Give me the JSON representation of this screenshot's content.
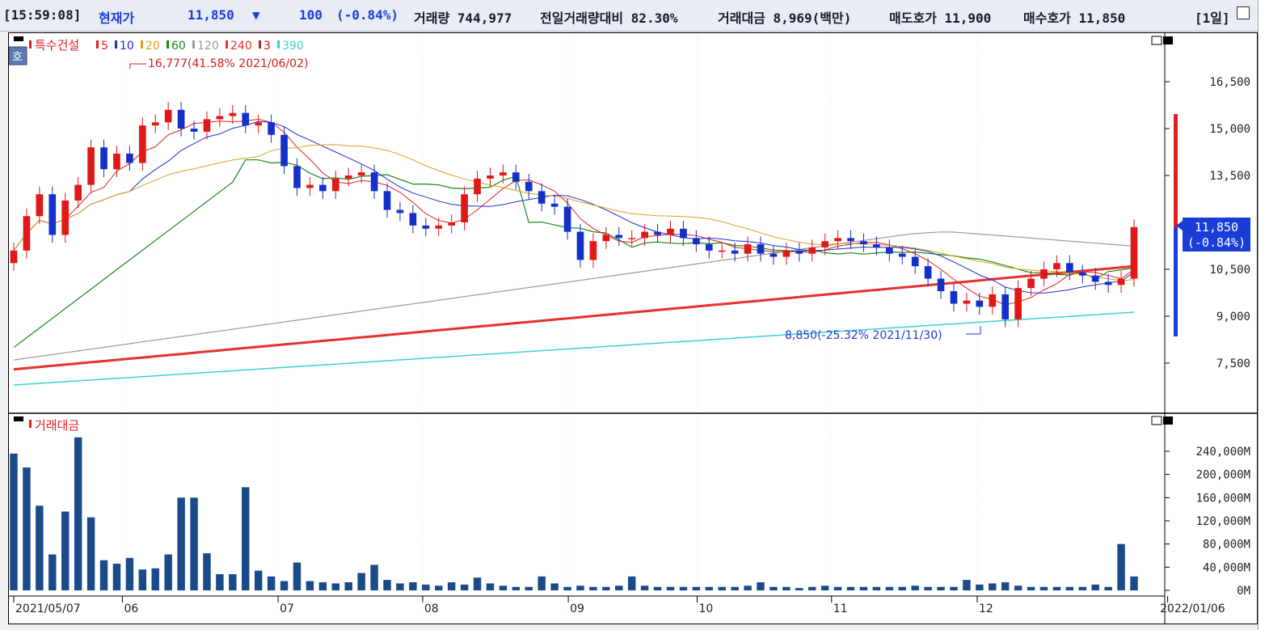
{
  "header": {
    "time": "[15:59:08]",
    "price_label": "현재가",
    "price": "11,850",
    "change_arrow": "▼",
    "change": "100",
    "change_pct": "(-0.84%)",
    "volume": "거래량 744,977",
    "prev_vol_ratio": "전일거래량대비 82.30%",
    "amount": "거래대금 8,969(백만)",
    "ask": "매도호가 11,900",
    "bid": "매수호가 11,850",
    "period": "[1일]"
  },
  "price_panel": {
    "stock_name": "특수건설",
    "side_label": "호",
    "ma_legend": [
      {
        "label": "5",
        "color": "#e02020"
      },
      {
        "label": "10",
        "color": "#2030d0"
      },
      {
        "label": "20",
        "color": "#e0a020"
      },
      {
        "label": "60",
        "color": "#1a8a1a"
      },
      {
        "label": "120",
        "color": "#9a9a9a"
      },
      {
        "label": "240",
        "color": "#e83030"
      },
      {
        "label": "3",
        "color": "#c02020"
      },
      {
        "label": "390",
        "color": "#40d0d0"
      }
    ],
    "high_annotation": "16,777(41.58% 2021/06/02)",
    "low_annotation": "8,850(-25.32% 2021/11/30)",
    "current_price": "11,850",
    "current_change": "(-0.84%)"
  },
  "volume_panel": {
    "title": "거래대금"
  },
  "x_labels": [
    "2021/05/07",
    "06",
    "07",
    "08",
    "09",
    "10",
    "11",
    "12",
    "2022/01/06"
  ],
  "chart_data": [
    {
      "type": "candlestick",
      "title": "특수건설",
      "x_range": [
        "2021/05/07",
        "2022/01/06"
      ],
      "y_ticks": [
        16500,
        15000,
        13500,
        10500,
        9000,
        7500
      ],
      "y_tick_labels": [
        "16,500",
        "15,000",
        "13,500",
        "10,500",
        "9,000",
        "7,500"
      ],
      "series": [
        {
          "name": "close",
          "values": [
            11100,
            12200,
            12900,
            11600,
            12700,
            13200,
            14400,
            13700,
            14200,
            13900,
            15100,
            15200,
            15600,
            15000,
            14900,
            15300,
            15400,
            15500,
            15100,
            15200,
            14800,
            13800,
            13100,
            13200,
            13000,
            13400,
            13500,
            13600,
            13000,
            12400,
            12300,
            11900,
            11800,
            11900,
            12000,
            12900,
            13400,
            13500,
            13600,
            13300,
            13000,
            12600,
            12500,
            11700,
            10800,
            11400,
            11600,
            11500,
            11500,
            11700,
            11600,
            11800,
            11500,
            11300,
            11100,
            11100,
            11000,
            11300,
            11000,
            10900,
            11100,
            11000,
            11200,
            11400,
            11500,
            11400,
            11300,
            11200,
            11000,
            10900,
            10600,
            10200,
            9800,
            9400,
            9500,
            9300,
            9700,
            8900,
            9900,
            10200,
            10500,
            10700,
            10400,
            10300,
            10100,
            10000,
            10200,
            11850
          ]
        }
      ],
      "ma_lines": [
        {
          "name": "240",
          "start": 7300,
          "end": 10600
        },
        {
          "name": "390",
          "start": 6800,
          "end": 9130
        },
        {
          "name": "120",
          "start": 7600,
          "end": 11800
        },
        {
          "name": "60",
          "start": 8000,
          "end": 10600
        }
      ],
      "annotations": [
        {
          "text": "16,777(41.58% 2021/06/02)",
          "value": 16777
        },
        {
          "text": "8,850(-25.32% 2021/11/30)",
          "value": 8850
        }
      ]
    },
    {
      "type": "bar",
      "title": "거래대금",
      "y_ticks": [
        0,
        40000,
        80000,
        120000,
        160000,
        200000,
        240000
      ],
      "y_tick_labels": [
        "0M",
        "40,000M",
        "80,000M",
        "120,000M",
        "160,000M",
        "200,000M",
        "240,000M"
      ],
      "values": [
        236000,
        212000,
        146000,
        62000,
        136000,
        264000,
        126000,
        52000,
        46000,
        56000,
        36000,
        38000,
        62000,
        160000,
        160000,
        64000,
        28000,
        28000,
        178000,
        34000,
        24000,
        16000,
        48000,
        16000,
        14000,
        12000,
        14000,
        30000,
        44000,
        18000,
        12000,
        14000,
        10000,
        8000,
        14000,
        10000,
        22000,
        12000,
        8000,
        6000,
        6000,
        24000,
        12000,
        6000,
        8000,
        6000,
        6000,
        8000,
        24000,
        8000,
        6000,
        6000,
        6000,
        6000,
        6000,
        6000,
        6000,
        8000,
        14000,
        6000,
        6000,
        4000,
        6000,
        8000,
        6000,
        6000,
        6000,
        6000,
        6000,
        6000,
        8000,
        6000,
        6000,
        6000,
        18000,
        10000,
        12000,
        14000,
        8000,
        6000,
        6000,
        6000,
        6000,
        6000,
        10000,
        6000,
        80000,
        24000
      ]
    }
  ]
}
